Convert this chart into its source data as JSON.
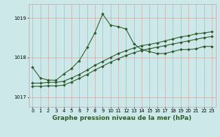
{
  "title": "",
  "xlabel": "Graphe pression niveau de la mer (hPa)",
  "bg_color": "#cce8e8",
  "line_color": "#2d5a2d",
  "xlim": [
    -0.5,
    23.5
  ],
  "ylim": [
    1016.75,
    1019.35
  ],
  "yticks": [
    1017,
    1018,
    1019
  ],
  "xticks": [
    0,
    1,
    2,
    3,
    4,
    5,
    6,
    7,
    8,
    9,
    10,
    11,
    12,
    13,
    14,
    15,
    16,
    17,
    18,
    19,
    20,
    21,
    22,
    23
  ],
  "series1_x": [
    0,
    1,
    2,
    3,
    4,
    5,
    6,
    7,
    8,
    9,
    10,
    11,
    12,
    13,
    14,
    15,
    16,
    17,
    18,
    19,
    20,
    21,
    22,
    23
  ],
  "series1_y": [
    1017.75,
    1017.48,
    1017.43,
    1017.42,
    1017.58,
    1017.72,
    1017.92,
    1018.25,
    1018.62,
    1019.1,
    1018.82,
    1018.78,
    1018.72,
    1018.35,
    1018.2,
    1018.15,
    1018.1,
    1018.1,
    1018.15,
    1018.2,
    1018.2,
    1018.22,
    1018.28,
    1018.28
  ],
  "series2_x": [
    0,
    1,
    2,
    3,
    4,
    5,
    6,
    7,
    8,
    9,
    10,
    11,
    12,
    13,
    14,
    15,
    16,
    17,
    18,
    19,
    20,
    21,
    22,
    23
  ],
  "series2_y": [
    1017.35,
    1017.35,
    1017.37,
    1017.37,
    1017.4,
    1017.48,
    1017.57,
    1017.68,
    1017.8,
    1017.9,
    1018.0,
    1018.1,
    1018.17,
    1018.24,
    1018.3,
    1018.33,
    1018.37,
    1018.42,
    1018.47,
    1018.52,
    1018.55,
    1018.6,
    1018.62,
    1018.65
  ],
  "series3_x": [
    0,
    1,
    2,
    3,
    4,
    5,
    6,
    7,
    8,
    9,
    10,
    11,
    12,
    13,
    14,
    15,
    16,
    17,
    18,
    19,
    20,
    21,
    22,
    23
  ],
  "series3_y": [
    1017.27,
    1017.27,
    1017.28,
    1017.28,
    1017.3,
    1017.38,
    1017.47,
    1017.57,
    1017.68,
    1017.78,
    1017.88,
    1017.97,
    1018.05,
    1018.12,
    1018.18,
    1018.22,
    1018.26,
    1018.3,
    1018.34,
    1018.38,
    1018.42,
    1018.46,
    1018.5,
    1018.53
  ],
  "marker": "D",
  "markersize": 2.0,
  "linewidth": 0.8,
  "tick_fontsize": 5.0,
  "xlabel_fontsize": 6.5,
  "xlabel_bold": true,
  "vgrid_color": "#cc8888",
  "hgrid_color": "#cc8888"
}
